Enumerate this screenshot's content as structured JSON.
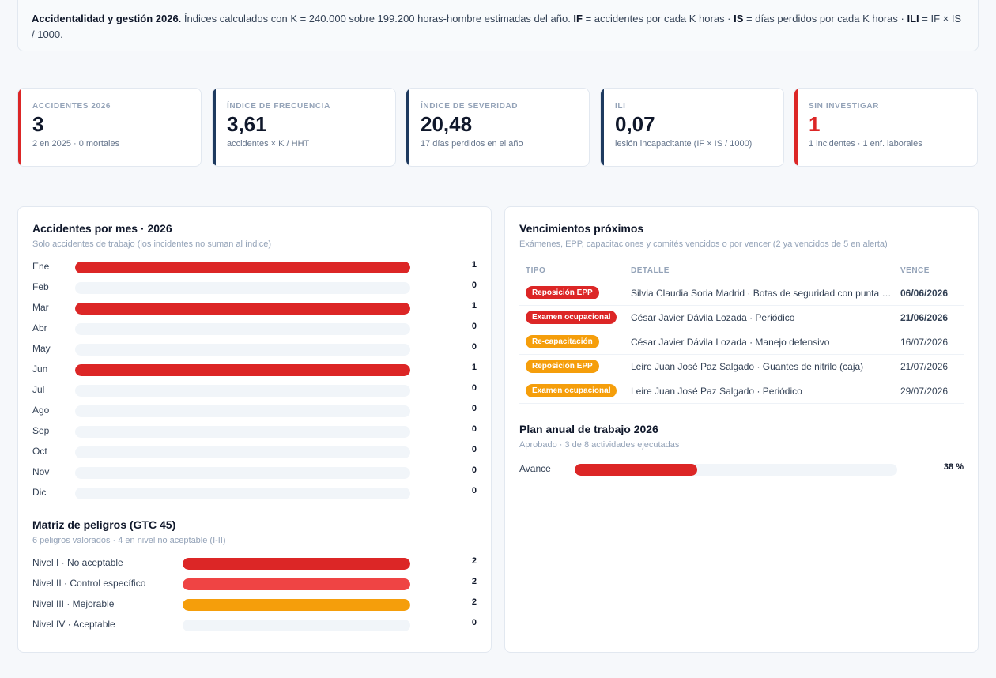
{
  "banner": {
    "title": "Accidentalidad y gestión 2026.",
    "text1": " Índices calculados con K = 240.000 sobre 199.200 horas-hombre estimadas del año. ",
    "if_abbr": "IF",
    "if_text": " = accidentes por cada K horas · ",
    "is_abbr": "IS",
    "is_text": " = días perdidos por cada K horas · ",
    "ili_abbr": "ILI",
    "ili_text": " = IF × IS / 1000."
  },
  "kpis": [
    {
      "label": "ACCIDENTES 2026",
      "value": "3",
      "sub": "2 en 2025 · 0 mortales",
      "accent": "#dc2626",
      "value_color": "default"
    },
    {
      "label": "ÍNDICE DE FRECUENCIA",
      "value": "3,61",
      "sub": "accidentes × K / HHT",
      "accent": "#1e3a5f",
      "value_color": "default"
    },
    {
      "label": "ÍNDICE DE SEVERIDAD",
      "value": "20,48",
      "sub": "17 días perdidos en el año",
      "accent": "#1e3a5f",
      "value_color": "default"
    },
    {
      "label": "ILI",
      "value": "0,07",
      "sub": "lesión incapacitante (IF × IS / 1000)",
      "accent": "#1e3a5f",
      "value_color": "default"
    },
    {
      "label": "SIN INVESTIGAR",
      "value": "1",
      "sub": "1 incidentes · 1 enf. laborales",
      "accent": "#dc2626",
      "value_color": "red"
    }
  ],
  "monthly": {
    "title": "Accidentes por mes · 2026",
    "subtitle": "Solo accidentes de trabajo (los incidentes no suman al índice)",
    "max": 1,
    "color": "#dc2626",
    "rows": [
      {
        "label": "Ene",
        "value": 1
      },
      {
        "label": "Feb",
        "value": 0
      },
      {
        "label": "Mar",
        "value": 1
      },
      {
        "label": "Abr",
        "value": 0
      },
      {
        "label": "May",
        "value": 0
      },
      {
        "label": "Jun",
        "value": 1
      },
      {
        "label": "Jul",
        "value": 0
      },
      {
        "label": "Ago",
        "value": 0
      },
      {
        "label": "Sep",
        "value": 0
      },
      {
        "label": "Oct",
        "value": 0
      },
      {
        "label": "Nov",
        "value": 0
      },
      {
        "label": "Dic",
        "value": 0
      }
    ]
  },
  "hazards": {
    "title": "Matriz de peligros (GTC 45)",
    "subtitle": "6 peligros valorados · 4 en nivel no aceptable (I-II)",
    "max": 2,
    "rows": [
      {
        "label": "Nivel I · No aceptable",
        "value": 2,
        "color": "#dc2626"
      },
      {
        "label": "Nivel II · Control específico",
        "value": 2,
        "color": "#ef4444"
      },
      {
        "label": "Nivel III · Mejorable",
        "value": 2,
        "color": "#f59e0b"
      },
      {
        "label": "Nivel IV · Aceptable",
        "value": 0,
        "color": "#cbd5e1"
      }
    ]
  },
  "due": {
    "title": "Vencimientos próximos",
    "subtitle": "Exámenes, EPP, capacitaciones y comités vencidos o por vencer (2 ya vencidos de 5 en alerta)",
    "headers": [
      "TIPO",
      "DETALLE",
      "VENCE"
    ],
    "rows": [
      {
        "tipo": "Reposición EPP",
        "color": "#dc2626",
        "detalle": "Silvia Claudia Soria Madrid · Botas de seguridad con punta de acero",
        "vence": "06/06/2026",
        "overdue": true
      },
      {
        "tipo": "Examen ocupacional",
        "color": "#dc2626",
        "detalle": "César Javier Dávila Lozada · Periódico",
        "vence": "21/06/2026",
        "overdue": true
      },
      {
        "tipo": "Re-capacitación",
        "color": "#f59e0b",
        "detalle": "César Javier Dávila Lozada · Manejo defensivo",
        "vence": "16/07/2026",
        "overdue": false
      },
      {
        "tipo": "Reposición EPP",
        "color": "#f59e0b",
        "detalle": "Leire Juan José Paz Salgado · Guantes de nitrilo (caja)",
        "vence": "21/07/2026",
        "overdue": false
      },
      {
        "tipo": "Examen ocupacional",
        "color": "#f59e0b",
        "detalle": "Leire Juan José Paz Salgado · Periódico",
        "vence": "29/07/2026",
        "overdue": false
      }
    ]
  },
  "plan": {
    "title": "Plan anual de trabajo 2026",
    "subtitle": "Aprobado · 3 de 8 actividades ejecutadas",
    "label": "Avance",
    "value_text": "38 %",
    "progress": 0.38,
    "color": "#dc2626"
  }
}
